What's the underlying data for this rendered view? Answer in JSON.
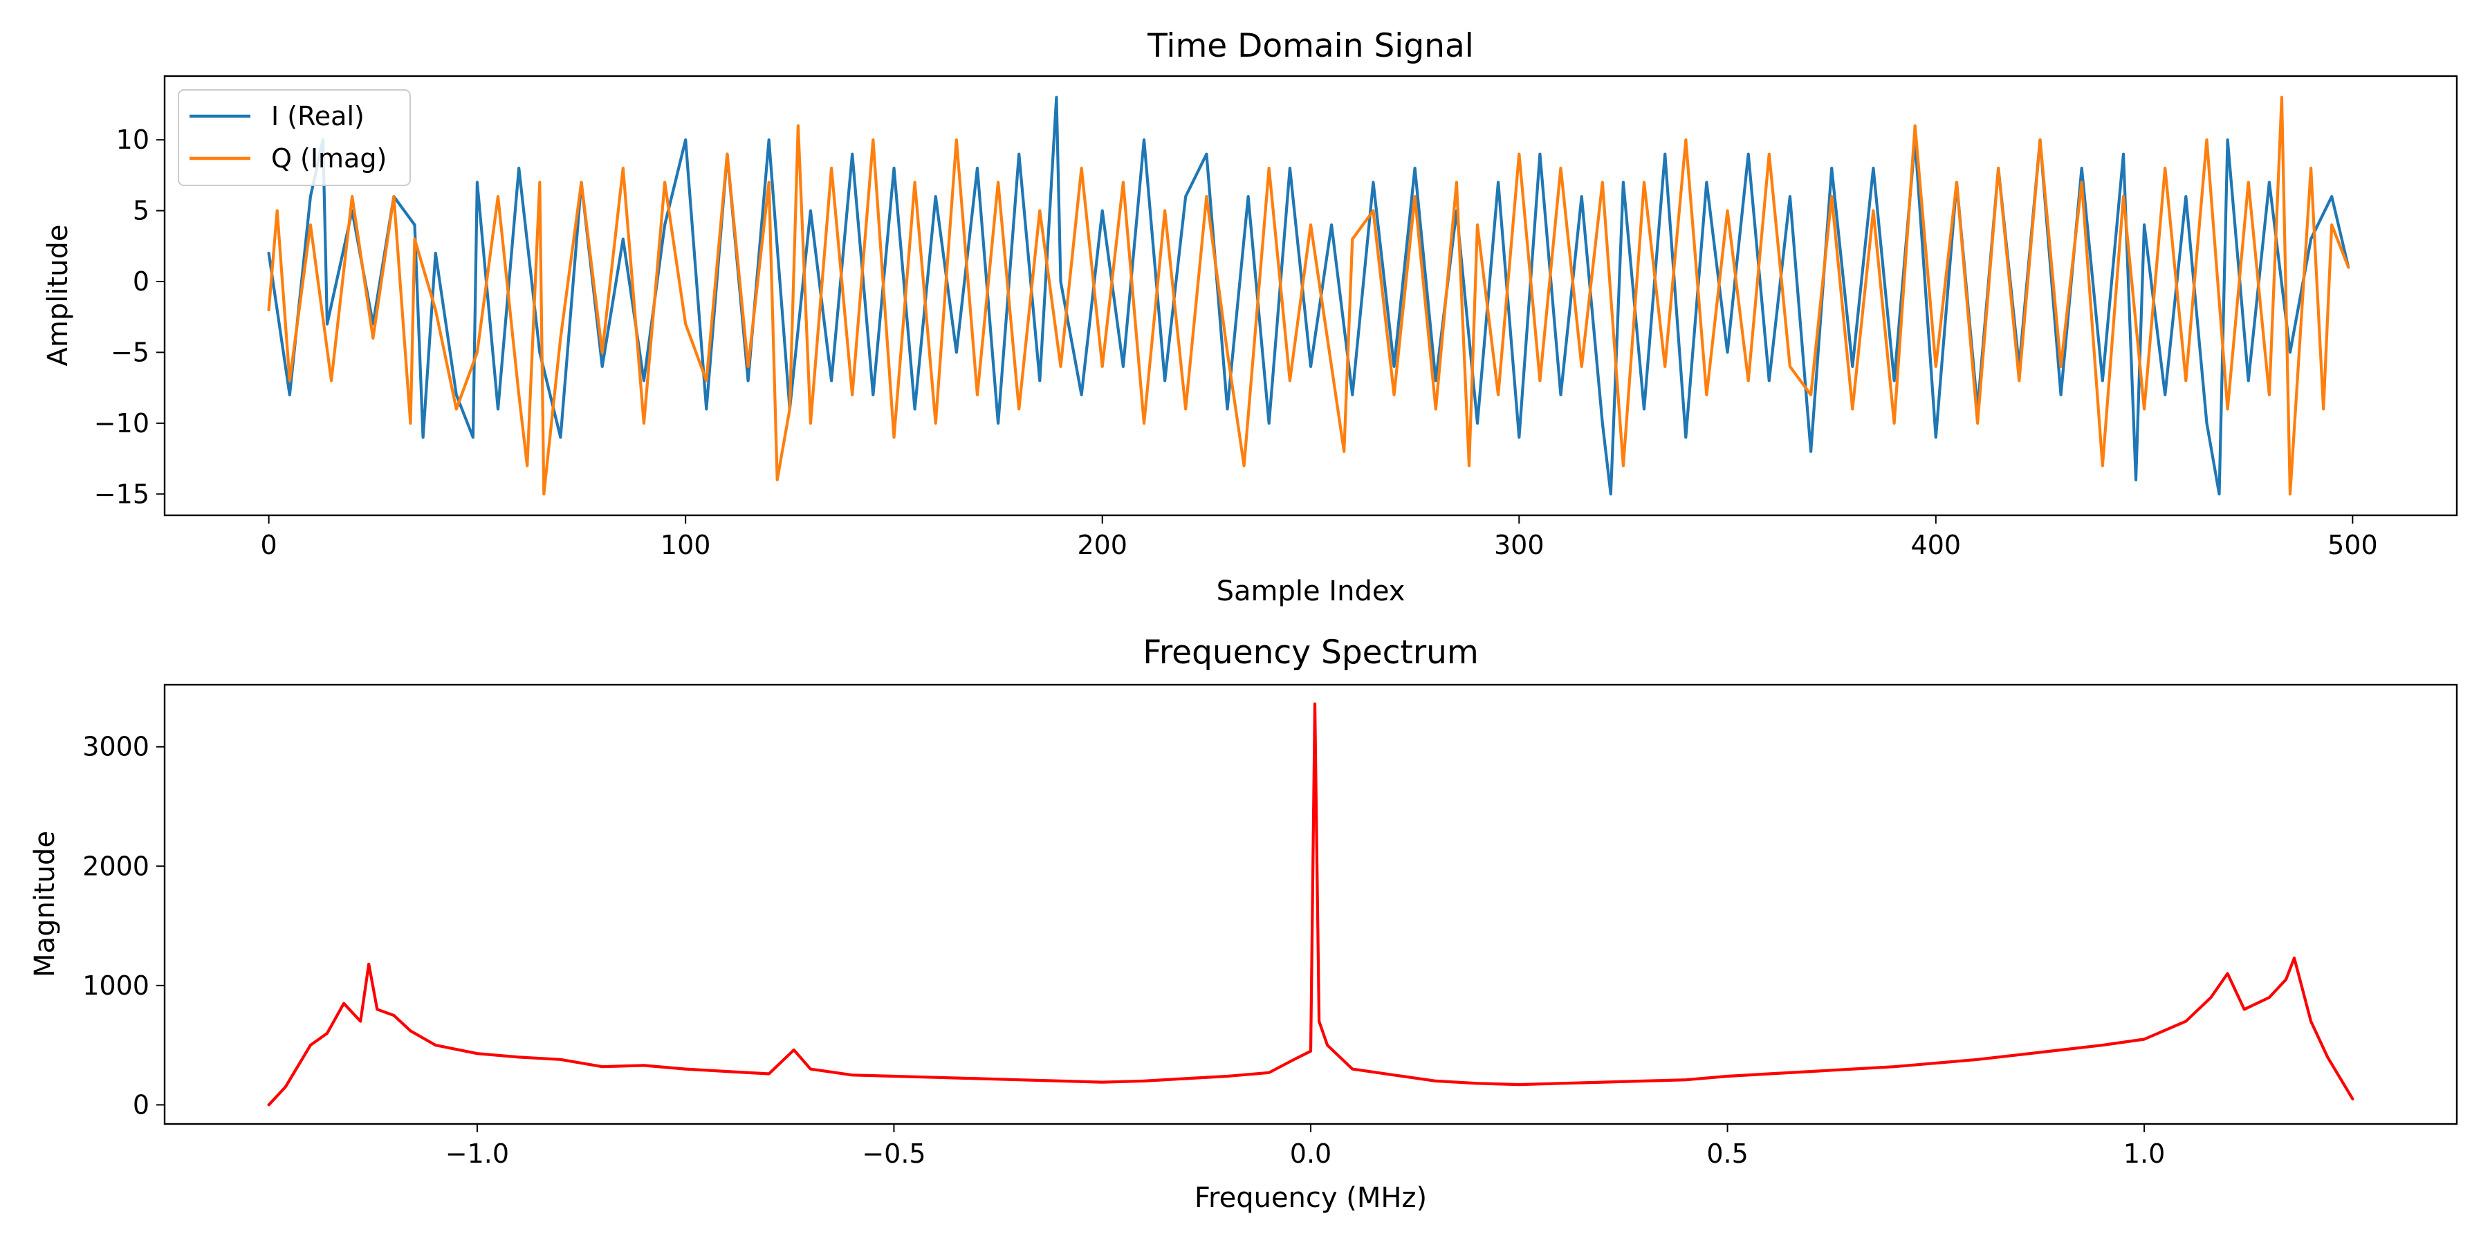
{
  "chart_data": [
    {
      "type": "line",
      "title": "Time Domain Signal",
      "xlabel": "Sample Index",
      "ylabel": "Amplitude",
      "xlim": [
        -25,
        525
      ],
      "ylim": [
        -16.5,
        14.5
      ],
      "xticks": [
        0,
        100,
        200,
        300,
        400,
        500
      ],
      "yticks": [
        10,
        5,
        0,
        -5,
        -10,
        -15
      ],
      "xtick_labels": [
        "0",
        "100",
        "200",
        "300",
        "400",
        "500"
      ],
      "ytick_labels": [
        "10",
        "5",
        "0",
        "−5",
        "−10",
        "−15"
      ],
      "legend_position": "top-left",
      "series": [
        {
          "name": "I (Real)",
          "color": "#1f77b4",
          "x": [
            0,
            5,
            10,
            13,
            14,
            20,
            25,
            30,
            35,
            37,
            40,
            45,
            49,
            50,
            55,
            60,
            65,
            70,
            75,
            80,
            85,
            90,
            95,
            100,
            105,
            110,
            115,
            120,
            125,
            130,
            135,
            140,
            145,
            150,
            155,
            160,
            165,
            170,
            175,
            180,
            185,
            189,
            190,
            195,
            200,
            205,
            210,
            215,
            220,
            225,
            230,
            235,
            240,
            245,
            250,
            255,
            260,
            265,
            270,
            275,
            280,
            285,
            290,
            295,
            300,
            305,
            310,
            315,
            320,
            322,
            325,
            330,
            335,
            340,
            345,
            350,
            355,
            360,
            365,
            370,
            375,
            380,
            385,
            390,
            395,
            400,
            405,
            410,
            415,
            420,
            425,
            430,
            435,
            440,
            445,
            448,
            450,
            455,
            460,
            465,
            468,
            470,
            475,
            480,
            485,
            490,
            495,
            499
          ],
          "y": [
            2,
            -8,
            6,
            10,
            -3,
            5,
            -3,
            6,
            4,
            -11,
            2,
            -8,
            -11,
            7,
            -9,
            8,
            -5,
            -11,
            7,
            -6,
            3,
            -7,
            4,
            10,
            -9,
            9,
            -7,
            10,
            -9,
            5,
            -7,
            9,
            -8,
            8,
            -9,
            6,
            -5,
            8,
            -10,
            9,
            -7,
            13,
            0,
            -8,
            5,
            -6,
            10,
            -7,
            6,
            9,
            -9,
            6,
            -10,
            8,
            -6,
            4,
            -8,
            7,
            -6,
            8,
            -7,
            5,
            -10,
            7,
            -11,
            9,
            -8,
            6,
            -10,
            -15,
            7,
            -9,
            9,
            -11,
            7,
            -5,
            9,
            -7,
            6,
            -12,
            8,
            -6,
            8,
            -7,
            10,
            -11,
            7,
            -9,
            8,
            -6,
            10,
            -8,
            8,
            -7,
            9,
            -14,
            4,
            -8,
            6,
            -10,
            -15,
            10,
            -7,
            7,
            -5,
            3,
            6,
            1
          ]
        },
        {
          "name": "Q (Imag)",
          "color": "#ff7f0e",
          "x": [
            0,
            2,
            5,
            10,
            15,
            20,
            25,
            30,
            34,
            35,
            40,
            45,
            50,
            55,
            60,
            62,
            65,
            66,
            70,
            75,
            80,
            85,
            90,
            95,
            100,
            105,
            110,
            115,
            120,
            122,
            125,
            127,
            130,
            135,
            140,
            145,
            150,
            155,
            160,
            165,
            170,
            175,
            180,
            185,
            190,
            195,
            200,
            205,
            210,
            215,
            220,
            225,
            230,
            234,
            240,
            245,
            250,
            255,
            258,
            260,
            265,
            270,
            275,
            280,
            285,
            288,
            290,
            295,
            300,
            305,
            310,
            315,
            320,
            325,
            330,
            335,
            340,
            345,
            350,
            355,
            360,
            365,
            370,
            375,
            380,
            385,
            390,
            395,
            400,
            405,
            410,
            415,
            420,
            425,
            430,
            435,
            440,
            445,
            450,
            455,
            460,
            465,
            470,
            475,
            480,
            483,
            485,
            490,
            493,
            495,
            499
          ],
          "y": [
            -2,
            5,
            -7,
            4,
            -7,
            6,
            -4,
            6,
            -10,
            3,
            -2,
            -9,
            -5,
            6,
            -8,
            -13,
            7,
            -15,
            -4,
            7,
            -5,
            8,
            -10,
            7,
            -3,
            -7,
            9,
            -6,
            7,
            -14,
            -9,
            11,
            -10,
            8,
            -8,
            10,
            -11,
            7,
            -10,
            10,
            -8,
            7,
            -9,
            5,
            -6,
            8,
            -6,
            7,
            -10,
            5,
            -9,
            6,
            -5,
            -13,
            8,
            -7,
            4,
            -6,
            -12,
            3,
            5,
            -8,
            6,
            -9,
            7,
            -13,
            4,
            -8,
            9,
            -7,
            8,
            -6,
            7,
            -13,
            7,
            -6,
            10,
            -8,
            5,
            -7,
            9,
            -6,
            -8,
            6,
            -9,
            5,
            -10,
            11,
            -6,
            7,
            -10,
            8,
            -7,
            10,
            -6,
            7,
            -13,
            6,
            -9,
            8,
            -7,
            10,
            -9,
            7,
            -8,
            13,
            -15,
            8,
            -9,
            4,
            1
          ]
        }
      ]
    },
    {
      "type": "line",
      "title": "Frequency Spectrum",
      "xlabel": "Frequency (MHz)",
      "ylabel": "Magnitude",
      "xlim": [
        -1.375,
        1.375
      ],
      "ylim": [
        -160,
        3520
      ],
      "xticks": [
        -1.0,
        -0.5,
        0.0,
        0.5,
        1.0
      ],
      "yticks": [
        3000,
        2000,
        1000,
        0
      ],
      "xtick_labels": [
        "−1.0",
        "−0.5",
        "0.0",
        "0.5",
        "1.0"
      ],
      "ytick_labels": [
        "3000",
        "2000",
        "1000",
        "0"
      ],
      "series": [
        {
          "color": "#ff0000",
          "x": [
            -1.25,
            -1.23,
            -1.2,
            -1.18,
            -1.16,
            -1.14,
            -1.13,
            -1.12,
            -1.1,
            -1.08,
            -1.05,
            -1.0,
            -0.95,
            -0.9,
            -0.85,
            -0.8,
            -0.75,
            -0.7,
            -0.65,
            -0.62,
            -0.6,
            -0.55,
            -0.5,
            -0.45,
            -0.4,
            -0.35,
            -0.3,
            -0.25,
            -0.2,
            -0.15,
            -0.1,
            -0.05,
            -0.02,
            0.0,
            0.005,
            0.01,
            0.02,
            0.05,
            0.1,
            0.15,
            0.2,
            0.25,
            0.3,
            0.35,
            0.4,
            0.45,
            0.5,
            0.55,
            0.6,
            0.65,
            0.7,
            0.75,
            0.8,
            0.85,
            0.9,
            0.95,
            1.0,
            1.05,
            1.08,
            1.1,
            1.12,
            1.15,
            1.17,
            1.18,
            1.2,
            1.22,
            1.25
          ],
          "y": [
            0,
            150,
            500,
            600,
            850,
            700,
            1180,
            800,
            750,
            620,
            500,
            430,
            400,
            380,
            320,
            330,
            300,
            280,
            260,
            460,
            300,
            250,
            240,
            230,
            220,
            210,
            200,
            190,
            200,
            220,
            240,
            270,
            380,
            450,
            3360,
            700,
            500,
            300,
            250,
            200,
            180,
            170,
            180,
            190,
            200,
            210,
            240,
            260,
            280,
            300,
            320,
            350,
            380,
            420,
            460,
            500,
            550,
            700,
            900,
            1100,
            800,
            900,
            1050,
            1230,
            700,
            400,
            50
          ]
        }
      ]
    }
  ]
}
